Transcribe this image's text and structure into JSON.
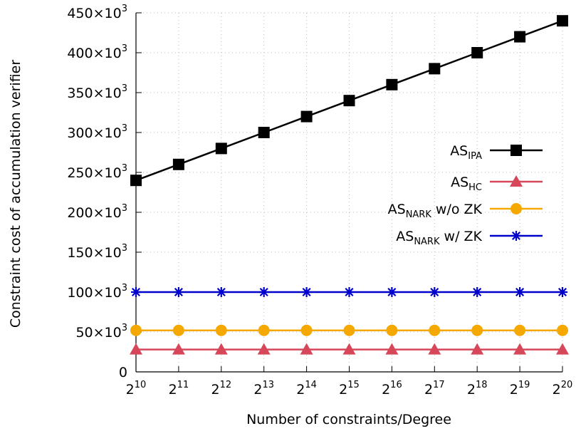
{
  "chart_data": {
    "type": "line",
    "title": "",
    "xlabel": "Number of constraints/Degree",
    "ylabel": "Constraint cost of accumulation verifier",
    "x": [
      10,
      11,
      12,
      13,
      14,
      15,
      16,
      17,
      18,
      19,
      20
    ],
    "x_tick_labels": [
      {
        "base": "2",
        "exp": "10"
      },
      {
        "base": "2",
        "exp": "11"
      },
      {
        "base": "2",
        "exp": "12"
      },
      {
        "base": "2",
        "exp": "13"
      },
      {
        "base": "2",
        "exp": "14"
      },
      {
        "base": "2",
        "exp": "15"
      },
      {
        "base": "2",
        "exp": "16"
      },
      {
        "base": "2",
        "exp": "17"
      },
      {
        "base": "2",
        "exp": "18"
      },
      {
        "base": "2",
        "exp": "19"
      },
      {
        "base": "2",
        "exp": "20"
      }
    ],
    "y_ticks": [
      0,
      50000,
      100000,
      150000,
      200000,
      250000,
      300000,
      350000,
      400000,
      450000
    ],
    "y_tick_labels": [
      {
        "mant": "0",
        "exp": ""
      },
      {
        "mant": "50×10",
        "exp": "3"
      },
      {
        "mant": "100×10",
        "exp": "3"
      },
      {
        "mant": "150×10",
        "exp": "3"
      },
      {
        "mant": "200×10",
        "exp": "3"
      },
      {
        "mant": "250×10",
        "exp": "3"
      },
      {
        "mant": "300×10",
        "exp": "3"
      },
      {
        "mant": "350×10",
        "exp": "3"
      },
      {
        "mant": "400×10",
        "exp": "3"
      },
      {
        "mant": "450×10",
        "exp": "3"
      }
    ],
    "xlim": [
      10,
      20
    ],
    "ylim": [
      0,
      450000
    ],
    "grid": true,
    "legend_position": "right",
    "series": [
      {
        "name": "AS",
        "sub": "IPA",
        "suffix": "",
        "color": "#000000",
        "marker": "square",
        "values": [
          240000,
          260000,
          280000,
          300000,
          320000,
          340000,
          360000,
          380000,
          400000,
          420000,
          440000
        ]
      },
      {
        "name": "AS",
        "sub": "HC",
        "suffix": "",
        "color": "#d6475a",
        "marker": "triangle",
        "values": [
          28000,
          28000,
          28000,
          28000,
          28000,
          28000,
          28000,
          28000,
          28000,
          28000,
          28000
        ]
      },
      {
        "name": "AS",
        "sub": "NARK",
        "suffix": " w/o ZK",
        "color": "#f5a800",
        "marker": "circle",
        "values": [
          52000,
          52000,
          52000,
          52000,
          52000,
          52000,
          52000,
          52000,
          52000,
          52000,
          52000
        ]
      },
      {
        "name": "AS",
        "sub": "NARK",
        "suffix": " w/ ZK",
        "color": "#0000cc",
        "marker": "star",
        "values": [
          100000,
          100000,
          100000,
          100000,
          100000,
          100000,
          100000,
          100000,
          100000,
          100000,
          100000
        ]
      }
    ]
  }
}
